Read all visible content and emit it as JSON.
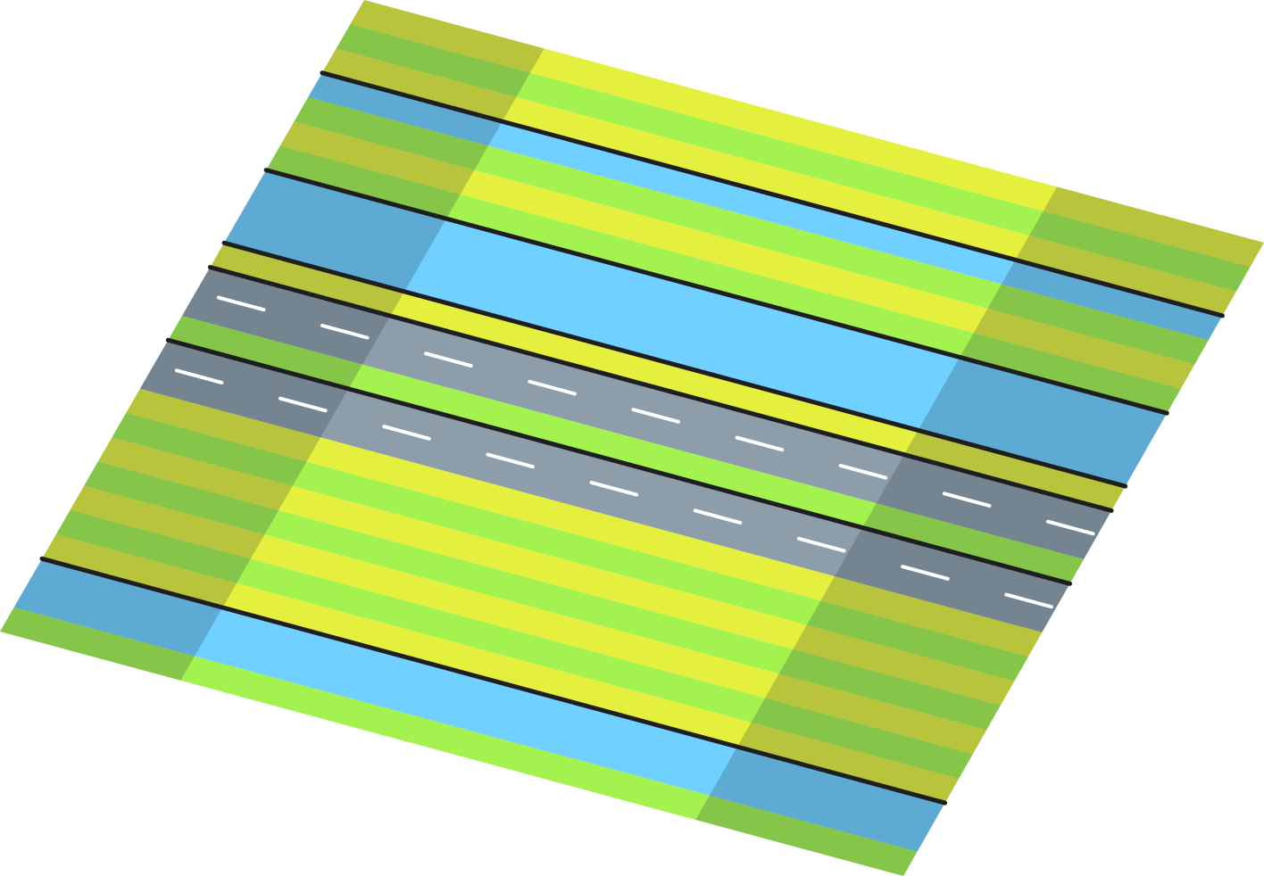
{
  "scene": {
    "kind": "isometric-terrain-tile",
    "colors": {
      "grass_light": "#A3F250",
      "grass_yellow": "#E4F03D",
      "grass_dark": "#78B545",
      "grass_olive": "#A8B43A",
      "water": "#70D0FF",
      "water_dark": "#5599BB",
      "road": "#8D9EAA",
      "road_dark": "#6A7880",
      "road_marking": "#FFFFFF",
      "edge_line": "#1E1E1E"
    },
    "bands": [
      {
        "type": "grass",
        "units": 1
      },
      {
        "type": "grass",
        "units": 1
      },
      {
        "type": "grass",
        "units": 1
      },
      {
        "type": "separator"
      },
      {
        "type": "water",
        "units": 1
      },
      {
        "type": "grass",
        "units": 1
      },
      {
        "type": "grass",
        "units": 1
      },
      {
        "type": "grass",
        "units": 1
      },
      {
        "type": "separator"
      },
      {
        "type": "water",
        "units": 3
      },
      {
        "type": "separator"
      },
      {
        "type": "grass",
        "units": 1
      },
      {
        "type": "separator"
      },
      {
        "type": "road",
        "units": 2
      },
      {
        "type": "grass",
        "units": 1
      },
      {
        "type": "separator"
      },
      {
        "type": "road",
        "units": 2
      },
      {
        "type": "grass",
        "units": 1
      },
      {
        "type": "grass",
        "units": 1
      },
      {
        "type": "grass",
        "units": 1
      },
      {
        "type": "grass",
        "units": 1
      },
      {
        "type": "grass",
        "units": 1
      },
      {
        "type": "grass",
        "units": 1
      },
      {
        "type": "grass",
        "units": 1
      },
      {
        "type": "separator"
      },
      {
        "type": "water",
        "units": 2
      },
      {
        "type": "grass",
        "units": 1
      }
    ],
    "highlight_column": {
      "from": 0.2,
      "to": 0.77
    }
  }
}
